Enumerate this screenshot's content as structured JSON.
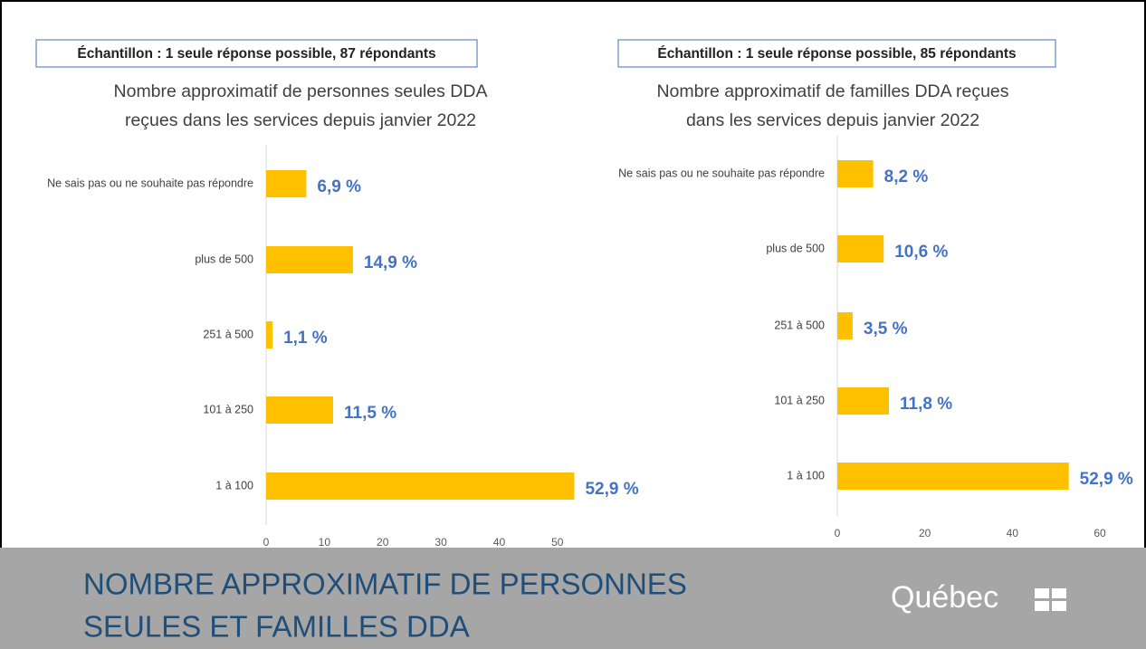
{
  "chart_data": [
    {
      "type": "bar",
      "orientation": "horizontal",
      "sample": "Échantillon : 1 seule réponse possible, 87 répondants",
      "title": [
        "Nombre approximatif de personnes seules DDA",
        "reçues dans les services depuis janvier 2022"
      ],
      "categories": [
        "Ne sais pas ou ne souhaite pas répondre",
        "plus de 500",
        "251 à 500",
        "101 à 250",
        "1 à 100"
      ],
      "values": [
        6.9,
        14.9,
        1.1,
        11.5,
        52.9
      ],
      "value_labels": [
        "6,9 %",
        "14,9 %",
        "1,1 %",
        "11,5 %",
        "52,9 %"
      ],
      "color": "#ffc000",
      "label_color": "#4472c4",
      "xlim": [
        0,
        55
      ],
      "xticks": [
        0,
        10,
        20,
        30,
        40,
        50
      ]
    },
    {
      "type": "bar",
      "orientation": "horizontal",
      "sample": "Échantillon : 1 seule réponse possible, 85 répondants",
      "title": [
        "Nombre approximatif de familles DDA reçues",
        "dans les services depuis janvier 2022"
      ],
      "categories": [
        "Ne sais pas ou ne souhaite pas répondre",
        "plus de 500",
        "251 à 500",
        "101 à 250",
        "1 à 100"
      ],
      "values": [
        8.2,
        10.6,
        3.5,
        11.8,
        52.9
      ],
      "value_labels": [
        "8,2 %",
        "10,6 %",
        "3,5 %",
        "11,8 %",
        "52,9 %"
      ],
      "color": "#ffc000",
      "label_color": "#4472c4",
      "xlim": [
        0,
        60
      ],
      "xticks": [
        0,
        20,
        40,
        60
      ]
    }
  ],
  "footer": {
    "title": [
      "NOMBRE APPROXIMATIF DE PERSONNES",
      "SEULES ET FAMILLES DDA"
    ],
    "logo": "Québec"
  }
}
